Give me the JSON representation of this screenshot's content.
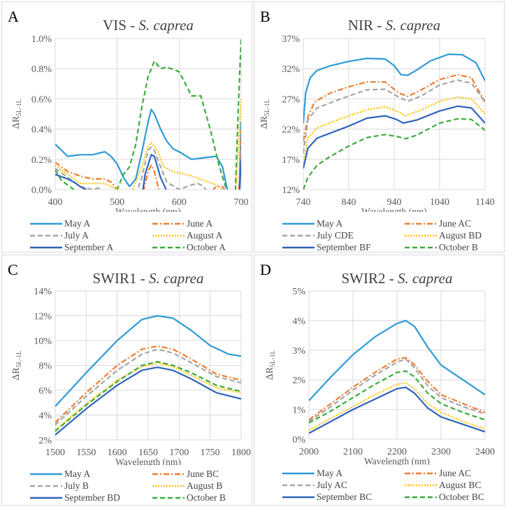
{
  "chart_data": [
    {
      "type": "line",
      "panel_letter": "A",
      "title_prefix": "VIS - ",
      "title_species": "S. caprea",
      "xlabel": "Wavelength (nm)",
      "ylabel_main": "ΔR",
      "ylabel_sub": "5L-1L",
      "xlim": [
        400,
        700
      ],
      "ylim": [
        0,
        1.0
      ],
      "x_ticks": [
        400,
        500,
        600,
        700
      ],
      "x_tick_labels": [
        "400",
        "500",
        "600",
        "700"
      ],
      "y_ticks": [
        0,
        0.2,
        0.4,
        0.6,
        0.8,
        1.0
      ],
      "y_tick_labels": [
        "0.0%",
        "0.2%",
        "0.4%",
        "0.6%",
        "0.8%",
        "1.0%"
      ],
      "grid": true,
      "legend_position": "bottom",
      "series": [
        {
          "name": "May A",
          "color": "#2e9bd6",
          "dash": "solid",
          "x": [
            400,
            410,
            420,
            440,
            460,
            480,
            490,
            500,
            510,
            520,
            530,
            540,
            550,
            555,
            560,
            570,
            580,
            590,
            600,
            620,
            640,
            660,
            670,
            680,
            695,
            700
          ],
          "y": [
            0.3,
            0.26,
            0.22,
            0.23,
            0.23,
            0.25,
            0.22,
            0.17,
            0.08,
            0.02,
            0.07,
            0.25,
            0.45,
            0.53,
            0.5,
            0.4,
            0.32,
            0.27,
            0.25,
            0.2,
            0.21,
            0.22,
            0.15,
            -0.05,
            -0.3,
            0.45
          ]
        },
        {
          "name": "June A",
          "color": "#ed7d31",
          "dash": "dashdot",
          "x": [
            400,
            420,
            440,
            460,
            480,
            490,
            500,
            520,
            540,
            550,
            555,
            560,
            570,
            600,
            650,
            660,
            670,
            680,
            695,
            700
          ],
          "y": [
            0.18,
            0.12,
            0.09,
            0.07,
            0.07,
            0.05,
            0.0,
            -0.2,
            -0.05,
            0.12,
            0.16,
            0.12,
            -0.05,
            -0.2,
            -0.02,
            0.02,
            0.02,
            -0.05,
            -0.2,
            0.4
          ]
        },
        {
          "name": "July A",
          "color": "#a5a5a5",
          "dash": "dashed",
          "x": [
            400,
            420,
            440,
            460,
            470,
            480,
            520,
            540,
            550,
            555,
            560,
            570,
            580,
            600,
            620,
            630,
            640,
            650,
            695,
            700
          ],
          "y": [
            0.14,
            0.08,
            0.02,
            0.0,
            0.01,
            -0.02,
            -0.15,
            0.08,
            0.26,
            0.28,
            0.26,
            0.15,
            0.05,
            0.0,
            0.03,
            0.04,
            0.02,
            -0.05,
            -0.3,
            0.3
          ]
        },
        {
          "name": "August A",
          "color": "#ffc000",
          "dash": "dotted",
          "x": [
            400,
            420,
            440,
            460,
            480,
            500,
            520,
            540,
            550,
            555,
            565,
            575,
            590,
            620,
            640,
            660,
            670,
            690,
            700
          ],
          "y": [
            0.16,
            0.1,
            0.04,
            0.04,
            0.04,
            0.0,
            -0.05,
            0.15,
            0.29,
            0.31,
            0.26,
            0.15,
            0.12,
            0.09,
            0.06,
            0.03,
            0.0,
            -0.1,
            0.6
          ]
        },
        {
          "name": "September A",
          "color": "#2f64b8",
          "dash": "solid",
          "x": [
            400,
            420,
            430,
            440,
            450,
            460,
            540,
            545,
            555,
            560,
            570,
            580,
            590,
            695,
            700
          ],
          "y": [
            0.1,
            0.07,
            0.05,
            0.02,
            0.0,
            -0.05,
            -0.05,
            0.1,
            0.23,
            0.22,
            0.08,
            -0.01,
            -0.2,
            -0.2,
            0.2
          ]
        },
        {
          "name": "October A",
          "color": "#3cab3c",
          "dash": "dashed",
          "x": [
            400,
            410,
            420,
            430,
            440,
            490,
            500,
            510,
            520,
            530,
            540,
            550,
            560,
            570,
            580,
            600,
            620,
            635,
            650,
            665,
            680,
            690,
            695,
            700
          ],
          "y": [
            0.13,
            0.06,
            0.03,
            0.0,
            -0.05,
            -0.1,
            0.0,
            0.1,
            0.15,
            0.3,
            0.55,
            0.75,
            0.85,
            0.8,
            0.81,
            0.78,
            0.62,
            0.62,
            0.4,
            0.15,
            -0.05,
            -0.1,
            0.5,
            1.0
          ]
        }
      ]
    },
    {
      "type": "line",
      "panel_letter": "B",
      "title_prefix": "NIR - ",
      "title_species": "S. caprea",
      "xlabel": "Wavelength (nm)",
      "ylabel_main": "ΔR",
      "ylabel_sub": "5L-1L",
      "xlim": [
        740,
        1140
      ],
      "ylim": [
        12,
        37
      ],
      "x_ticks": [
        740,
        840,
        940,
        1040,
        1140
      ],
      "x_tick_labels": [
        "740",
        "840",
        "940",
        "1040",
        "1140"
      ],
      "y_ticks": [
        12,
        17,
        22,
        27,
        32,
        37
      ],
      "y_tick_labels": [
        "12%",
        "17%",
        "22%",
        "27%",
        "32%",
        "37%"
      ],
      "grid": true,
      "legend_position": "bottom",
      "series": [
        {
          "name": "May A",
          "color": "#2e9bd6",
          "dash": "solid",
          "x": [
            740,
            745,
            755,
            770,
            800,
            840,
            880,
            920,
            940,
            955,
            970,
            990,
            1020,
            1060,
            1090,
            1120,
            1140
          ],
          "y": [
            23,
            28,
            30.5,
            31.7,
            32.5,
            33.2,
            33.7,
            33.6,
            32.5,
            31,
            30.9,
            31.8,
            33.3,
            34.4,
            34.3,
            33,
            30
          ]
        },
        {
          "name": "June AC",
          "color": "#ed7d31",
          "dash": "dashdot",
          "x": [
            740,
            750,
            765,
            800,
            840,
            880,
            920,
            950,
            970,
            1000,
            1040,
            1080,
            1110,
            1140
          ],
          "y": [
            20,
            24,
            26.5,
            28,
            29,
            29.8,
            29.8,
            28,
            27.4,
            28.5,
            30.2,
            31,
            30.5,
            26.5
          ]
        },
        {
          "name": "July CDE",
          "color": "#a5a5a5",
          "dash": "dashed",
          "x": [
            740,
            750,
            770,
            840,
            880,
            920,
            945,
            970,
            1000,
            1040,
            1080,
            1110,
            1140
          ],
          "y": [
            18,
            23.5,
            25.5,
            27.5,
            28.5,
            28.6,
            27.5,
            26.6,
            27.5,
            29.3,
            30.1,
            29.6,
            26.5
          ]
        },
        {
          "name": "August BD",
          "color": "#ffc000",
          "dash": "dotted",
          "x": [
            740,
            750,
            770,
            840,
            880,
            920,
            945,
            965,
            1000,
            1040,
            1080,
            1110,
            1140
          ],
          "y": [
            16,
            20.5,
            22.2,
            24.2,
            25.2,
            25.7,
            25,
            24.2,
            25.2,
            26.6,
            27.3,
            27,
            24.5
          ]
        },
        {
          "name": "September BF",
          "color": "#2f64b8",
          "dash": "solid",
          "x": [
            740,
            750,
            770,
            840,
            880,
            920,
            945,
            960,
            990,
            1040,
            1080,
            1110,
            1140
          ],
          "y": [
            15.5,
            18.8,
            20.5,
            22.5,
            23.8,
            24.2,
            23.6,
            23,
            23.5,
            25,
            25.8,
            25.5,
            23
          ]
        },
        {
          "name": "October B",
          "color": "#3cab3c",
          "dash": "dashed",
          "x": [
            740,
            750,
            770,
            800,
            840,
            880,
            920,
            945,
            965,
            990,
            1040,
            1080,
            1110,
            1140
          ],
          "y": [
            12,
            14,
            16,
            17.5,
            19.2,
            20.6,
            21.1,
            20.8,
            20.4,
            21,
            23,
            23.7,
            23.6,
            21.8
          ]
        }
      ]
    },
    {
      "type": "line",
      "panel_letter": "C",
      "title_prefix": "SWIR1 - ",
      "title_species": "S. caprea",
      "xlabel": "Wavelength (nm)",
      "ylabel_main": "ΔR",
      "ylabel_sub": "5L-1L",
      "xlim": [
        1500,
        1800
      ],
      "ylim": [
        2,
        14
      ],
      "x_ticks": [
        1500,
        1550,
        1600,
        1650,
        1700,
        1750,
        1800
      ],
      "x_tick_labels": [
        "1500",
        "1550",
        "1600",
        "1650",
        "1700",
        "1750",
        "1800"
      ],
      "y_ticks": [
        2,
        4,
        6,
        8,
        10,
        12,
        14
      ],
      "y_tick_labels": [
        "2%",
        "4%",
        "6%",
        "8%",
        "10%",
        "12%",
        "14%"
      ],
      "grid": true,
      "legend_position": "bottom",
      "series": [
        {
          "name": "May A",
          "color": "#2e9bd6",
          "dash": "solid",
          "x": [
            1500,
            1550,
            1600,
            1640,
            1665,
            1690,
            1720,
            1750,
            1780,
            1800
          ],
          "y": [
            4.7,
            7.4,
            10,
            11.7,
            12,
            11.8,
            10.8,
            9.6,
            8.9,
            8.75
          ]
        },
        {
          "name": "June BC",
          "color": "#ed7d31",
          "dash": "dashdot",
          "x": [
            1500,
            1550,
            1600,
            1640,
            1665,
            1690,
            1720,
            1760,
            1800
          ],
          "y": [
            3.4,
            5.8,
            8,
            9.3,
            9.55,
            9.3,
            8.5,
            7.3,
            6.8
          ]
        },
        {
          "name": "July B",
          "color": "#a5a5a5",
          "dash": "dashed",
          "x": [
            1500,
            1550,
            1600,
            1640,
            1665,
            1690,
            1720,
            1760,
            1800
          ],
          "y": [
            3.2,
            5.5,
            7.6,
            8.9,
            9.3,
            9.0,
            8.2,
            7.1,
            6.6
          ]
        },
        {
          "name": "August B",
          "color": "#ffc000",
          "dash": "dotted",
          "x": [
            1500,
            1550,
            1600,
            1640,
            1665,
            1690,
            1720,
            1760,
            1800
          ],
          "y": [
            2.8,
            4.9,
            6.8,
            7.9,
            8.2,
            7.9,
            7.2,
            6.2,
            5.8
          ]
        },
        {
          "name": "September BD",
          "color": "#2f64b8",
          "dash": "solid",
          "x": [
            1500,
            1550,
            1600,
            1640,
            1665,
            1690,
            1720,
            1760,
            1800
          ],
          "y": [
            2.4,
            4.5,
            6.4,
            7.6,
            7.85,
            7.6,
            6.9,
            5.8,
            5.3
          ]
        },
        {
          "name": "October B",
          "color": "#3cab3c",
          "dash": "dashed",
          "x": [
            1500,
            1550,
            1600,
            1640,
            1665,
            1690,
            1720,
            1760,
            1800
          ],
          "y": [
            2.7,
            4.8,
            6.7,
            8,
            8.3,
            8.0,
            7.4,
            6.4,
            5.9
          ]
        }
      ]
    },
    {
      "type": "line",
      "panel_letter": "D",
      "title_prefix": "SWIR2 - ",
      "title_species": "S. caprea",
      "xlabel": "Wavelength (nm)",
      "ylabel_main": "ΔR",
      "ylabel_sub": "5L-1L",
      "xlim": [
        2000,
        2400
      ],
      "ylim": [
        0,
        5
      ],
      "x_ticks": [
        2000,
        2100,
        2200,
        2300,
        2400
      ],
      "x_tick_labels": [
        "2000",
        "2100",
        "2200",
        "2300",
        "2400"
      ],
      "y_ticks": [
        0,
        1,
        2,
        3,
        4,
        5
      ],
      "y_tick_labels": [
        "0%",
        "1%",
        "2%",
        "3%",
        "4%",
        "5%"
      ],
      "grid": true,
      "legend_position": "bottom",
      "series": [
        {
          "name": "May A",
          "color": "#2e9bd6",
          "dash": "solid",
          "x": [
            2000,
            2050,
            2100,
            2150,
            2200,
            2220,
            2240,
            2270,
            2300,
            2350,
            2400
          ],
          "y": [
            1.3,
            2.1,
            2.85,
            3.45,
            3.9,
            4.0,
            3.8,
            3.1,
            2.5,
            2.0,
            1.5
          ]
        },
        {
          "name": "June AC",
          "color": "#ed7d31",
          "dash": "dashdot",
          "x": [
            2000,
            2050,
            2100,
            2150,
            2200,
            2220,
            2240,
            2270,
            2300,
            2350,
            2400
          ],
          "y": [
            0.65,
            1.2,
            1.75,
            2.25,
            2.7,
            2.75,
            2.5,
            1.95,
            1.5,
            1.2,
            0.9
          ]
        },
        {
          "name": "July AC",
          "color": "#a5a5a5",
          "dash": "dashed",
          "x": [
            2000,
            2050,
            2100,
            2150,
            2200,
            2220,
            2240,
            2270,
            2300,
            2350,
            2400
          ],
          "y": [
            0.6,
            1.1,
            1.65,
            2.15,
            2.6,
            2.7,
            2.4,
            1.8,
            1.4,
            1.1,
            0.85
          ]
        },
        {
          "name": "August BC",
          "color": "#ffc000",
          "dash": "dotted",
          "x": [
            2000,
            2050,
            2100,
            2150,
            2200,
            2220,
            2240,
            2270,
            2300,
            2350,
            2400
          ],
          "y": [
            0.3,
            0.7,
            1.1,
            1.5,
            1.85,
            1.9,
            1.7,
            1.2,
            0.9,
            0.6,
            0.35
          ]
        },
        {
          "name": "September BC",
          "color": "#2f64b8",
          "dash": "solid",
          "x": [
            2000,
            2050,
            2100,
            2150,
            2200,
            2220,
            2240,
            2270,
            2300,
            2350,
            2400
          ],
          "y": [
            0.2,
            0.6,
            1.0,
            1.35,
            1.7,
            1.75,
            1.55,
            1.05,
            0.75,
            0.5,
            0.25
          ]
        },
        {
          "name": "October BC",
          "color": "#3cab3c",
          "dash": "dashed",
          "x": [
            2000,
            2050,
            2100,
            2150,
            2200,
            2220,
            2240,
            2270,
            2300,
            2350,
            2400
          ],
          "y": [
            0.55,
            0.95,
            1.4,
            1.85,
            2.25,
            2.3,
            2.1,
            1.55,
            1.2,
            0.9,
            0.65
          ]
        }
      ]
    }
  ]
}
